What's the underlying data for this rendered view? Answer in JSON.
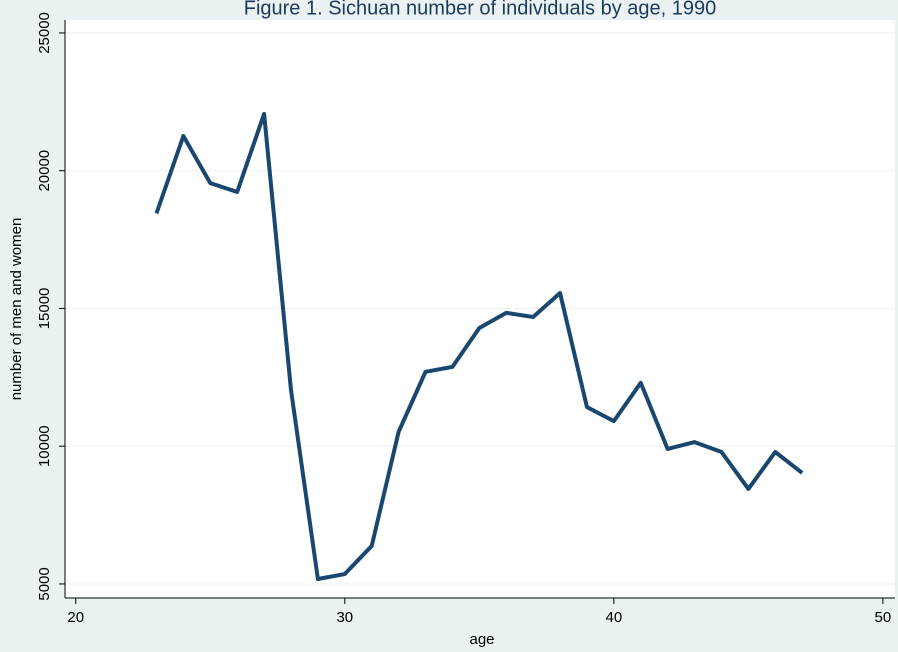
{
  "chart_data": {
    "type": "line",
    "title": "Figure 1. Sichuan number of individuals by age, 1990",
    "x_label": "age",
    "y_label": "number of men and women",
    "x": [
      23,
      24,
      25,
      26,
      27,
      28,
      29,
      30,
      31,
      32,
      33,
      34,
      35,
      36,
      37,
      38,
      39,
      40,
      41,
      42,
      43,
      44,
      45,
      46,
      47
    ],
    "series": [
      {
        "color": "#1a476f",
        "values": [
          18450,
          21260,
          19550,
          19230,
          22060,
          12040,
          5180,
          5360,
          6380,
          10520,
          12700,
          12880,
          14290,
          14840,
          14690,
          15560,
          11420,
          10910,
          12300,
          9900,
          10150,
          9790,
          8450,
          9790,
          9030
        ]
      }
    ],
    "xlim": [
      19.6,
      50.45
    ],
    "xticks": [
      20,
      30,
      40,
      50
    ],
    "ylim": [
      4490,
      25470
    ],
    "yticks": [
      5000,
      10000,
      15000,
      20000,
      25000
    ],
    "grid": true
  }
}
